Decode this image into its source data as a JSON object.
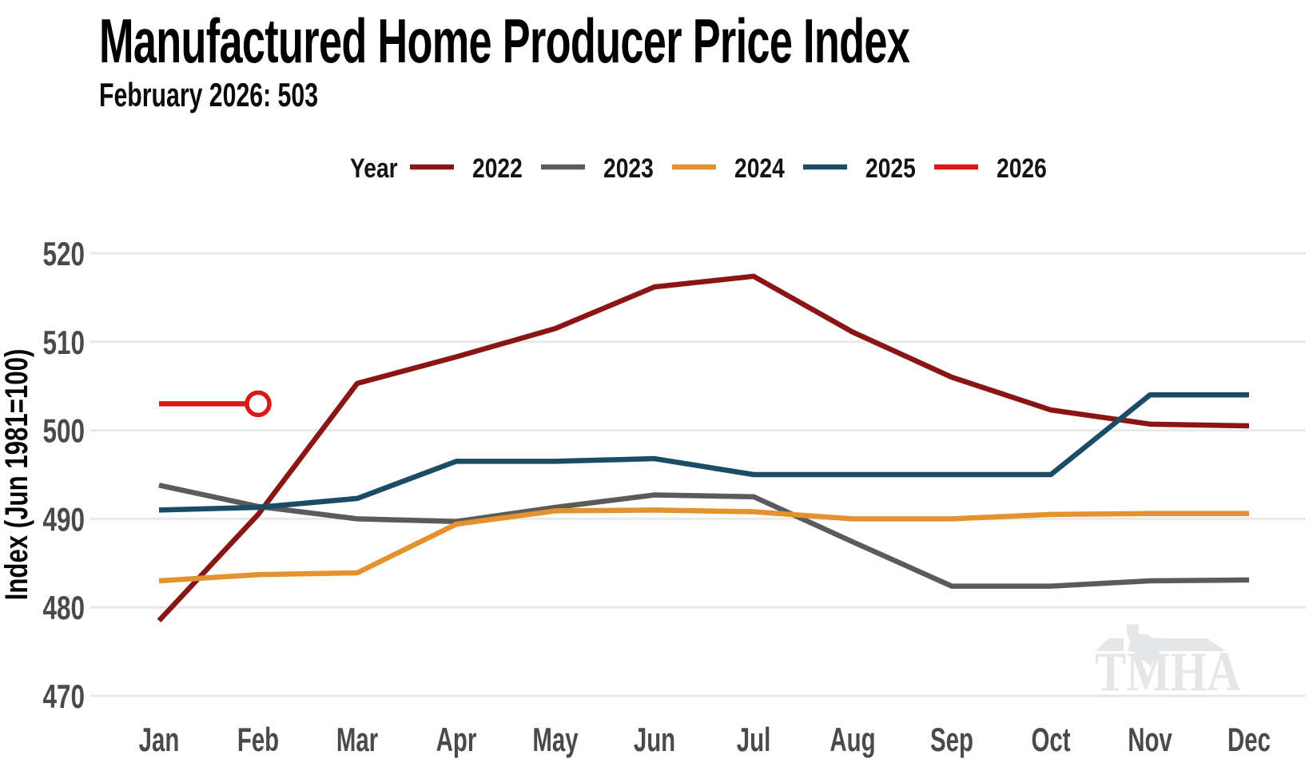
{
  "chart_data": {
    "type": "line",
    "title": "Manufactured Home Producer Price Index",
    "subtitle": "February 2026: 503",
    "legend_title": "Year",
    "legend_position": "top",
    "grid": "horizontal-only",
    "x_categories": [
      "Jan",
      "Feb",
      "Mar",
      "Apr",
      "May",
      "Jun",
      "Jul",
      "Aug",
      "Sep",
      "Oct",
      "Nov",
      "Dec"
    ],
    "ylabel": "Index (Jun 1981=100)",
    "ylim": [
      470,
      520
    ],
    "yticks": [
      470,
      480,
      490,
      500,
      510,
      520
    ],
    "series": [
      {
        "name": "2022",
        "color": "#8B1414",
        "values": [
          478.5,
          490.5,
          505.3,
          508.3,
          511.5,
          516.2,
          517.4,
          511.1,
          506.0,
          502.3,
          500.7,
          500.5
        ]
      },
      {
        "name": "2023",
        "color": "#5B5B5B",
        "values": [
          493.8,
          491.4,
          490.0,
          489.7,
          491.3,
          492.7,
          492.5,
          487.4,
          482.4,
          482.4,
          483.0,
          483.1
        ]
      },
      {
        "name": "2024",
        "color": "#E5912D",
        "values": [
          483.0,
          483.7,
          483.9,
          489.4,
          490.9,
          491.0,
          490.8,
          490.0,
          490.0,
          490.5,
          490.6,
          490.6
        ]
      },
      {
        "name": "2025",
        "color": "#1A4C66",
        "values": [
          491.0,
          491.3,
          492.3,
          496.5,
          496.5,
          496.8,
          495.0,
          495.0,
          495.0,
          495.0,
          504.0,
          504.0
        ]
      },
      {
        "name": "2026",
        "color": "#D91818",
        "values": [
          503.0,
          503.0
        ],
        "endpoint_marker": "open-circle"
      }
    ],
    "grid_color": "#E8E8E8",
    "tick_color": "#4A4A4A",
    "watermark": "TMHA",
    "watermark_color": "#E4E6E8"
  }
}
